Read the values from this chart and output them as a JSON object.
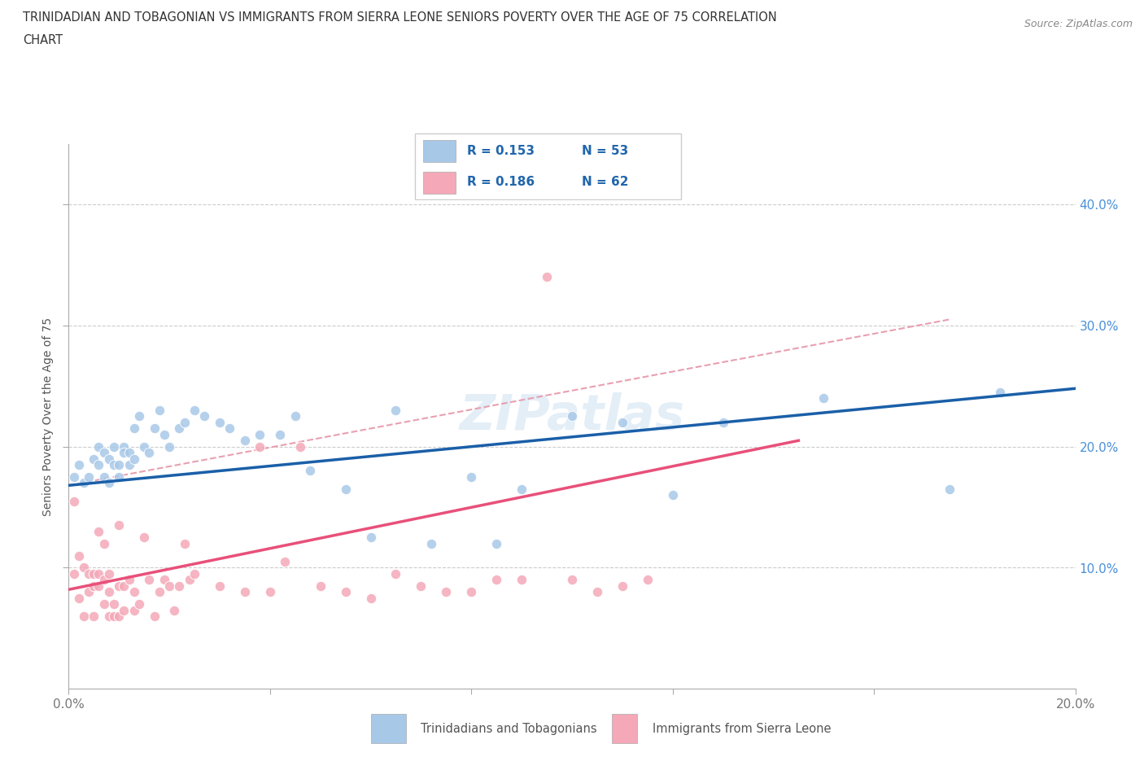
{
  "title_line1": "TRINIDADIAN AND TOBAGONIAN VS IMMIGRANTS FROM SIERRA LEONE SENIORS POVERTY OVER THE AGE OF 75 CORRELATION",
  "title_line2": "CHART",
  "source": "Source: ZipAtlas.com",
  "ylabel": "Seniors Poverty Over the Age of 75",
  "xlim": [
    0.0,
    0.2
  ],
  "ylim": [
    0.0,
    0.45
  ],
  "xticks": [
    0.0,
    0.04,
    0.08,
    0.12,
    0.16,
    0.2
  ],
  "xticklabels": [
    "0.0%",
    "",
    "",
    "",
    "",
    "20.0%"
  ],
  "yticks": [
    0.1,
    0.2,
    0.3,
    0.4
  ],
  "yticklabels": [
    "10.0%",
    "20.0%",
    "30.0%",
    "40.0%"
  ],
  "blue_color": "#a8c8e8",
  "pink_color": "#f4a8b8",
  "blue_line_color": "#1a5fa8",
  "pink_line_color": "#e8507a",
  "dashed_line_color": "#e8a0b0",
  "legend_label_blue": "Trinidadians and Tobagonians",
  "legend_label_pink": "Immigrants from Sierra Leone",
  "watermark": "ZIPatlas",
  "blue_scatter_x": [
    0.001,
    0.002,
    0.003,
    0.004,
    0.005,
    0.006,
    0.006,
    0.007,
    0.007,
    0.008,
    0.008,
    0.009,
    0.009,
    0.01,
    0.01,
    0.011,
    0.011,
    0.012,
    0.012,
    0.013,
    0.013,
    0.014,
    0.015,
    0.016,
    0.017,
    0.018,
    0.019,
    0.02,
    0.022,
    0.023,
    0.025,
    0.027,
    0.03,
    0.032,
    0.035,
    0.038,
    0.042,
    0.045,
    0.048,
    0.055,
    0.06,
    0.065,
    0.072,
    0.08,
    0.085,
    0.09,
    0.1,
    0.11,
    0.12,
    0.13,
    0.15,
    0.175,
    0.185
  ],
  "blue_scatter_y": [
    0.175,
    0.185,
    0.17,
    0.175,
    0.19,
    0.2,
    0.185,
    0.195,
    0.175,
    0.17,
    0.19,
    0.185,
    0.2,
    0.185,
    0.175,
    0.2,
    0.195,
    0.185,
    0.195,
    0.19,
    0.215,
    0.225,
    0.2,
    0.195,
    0.215,
    0.23,
    0.21,
    0.2,
    0.215,
    0.22,
    0.23,
    0.225,
    0.22,
    0.215,
    0.205,
    0.21,
    0.21,
    0.225,
    0.18,
    0.165,
    0.125,
    0.23,
    0.12,
    0.175,
    0.12,
    0.165,
    0.225,
    0.22,
    0.16,
    0.22,
    0.24,
    0.165,
    0.245
  ],
  "pink_scatter_x": [
    0.001,
    0.001,
    0.002,
    0.002,
    0.003,
    0.003,
    0.004,
    0.004,
    0.005,
    0.005,
    0.005,
    0.006,
    0.006,
    0.006,
    0.007,
    0.007,
    0.007,
    0.008,
    0.008,
    0.008,
    0.009,
    0.009,
    0.01,
    0.01,
    0.01,
    0.011,
    0.011,
    0.012,
    0.013,
    0.013,
    0.014,
    0.015,
    0.016,
    0.017,
    0.018,
    0.019,
    0.02,
    0.021,
    0.022,
    0.023,
    0.024,
    0.025,
    0.03,
    0.035,
    0.038,
    0.04,
    0.043,
    0.046,
    0.05,
    0.055,
    0.06,
    0.065,
    0.07,
    0.075,
    0.08,
    0.085,
    0.09,
    0.095,
    0.1,
    0.105,
    0.11,
    0.115
  ],
  "pink_scatter_y": [
    0.155,
    0.095,
    0.11,
    0.075,
    0.1,
    0.06,
    0.095,
    0.08,
    0.085,
    0.095,
    0.06,
    0.085,
    0.095,
    0.13,
    0.09,
    0.07,
    0.12,
    0.08,
    0.06,
    0.095,
    0.07,
    0.06,
    0.135,
    0.085,
    0.06,
    0.065,
    0.085,
    0.09,
    0.065,
    0.08,
    0.07,
    0.125,
    0.09,
    0.06,
    0.08,
    0.09,
    0.085,
    0.065,
    0.085,
    0.12,
    0.09,
    0.095,
    0.085,
    0.08,
    0.2,
    0.08,
    0.105,
    0.2,
    0.085,
    0.08,
    0.075,
    0.095,
    0.085,
    0.08,
    0.08,
    0.09,
    0.09,
    0.34,
    0.09,
    0.08,
    0.085,
    0.09
  ],
  "blue_trendline_x": [
    0.0,
    0.2
  ],
  "blue_trendline_y": [
    0.168,
    0.248
  ],
  "pink_trendline_x": [
    0.0,
    0.145
  ],
  "pink_trendline_y": [
    0.082,
    0.205
  ],
  "dashed_line_x": [
    0.0,
    0.175
  ],
  "dashed_line_y": [
    0.168,
    0.305
  ]
}
